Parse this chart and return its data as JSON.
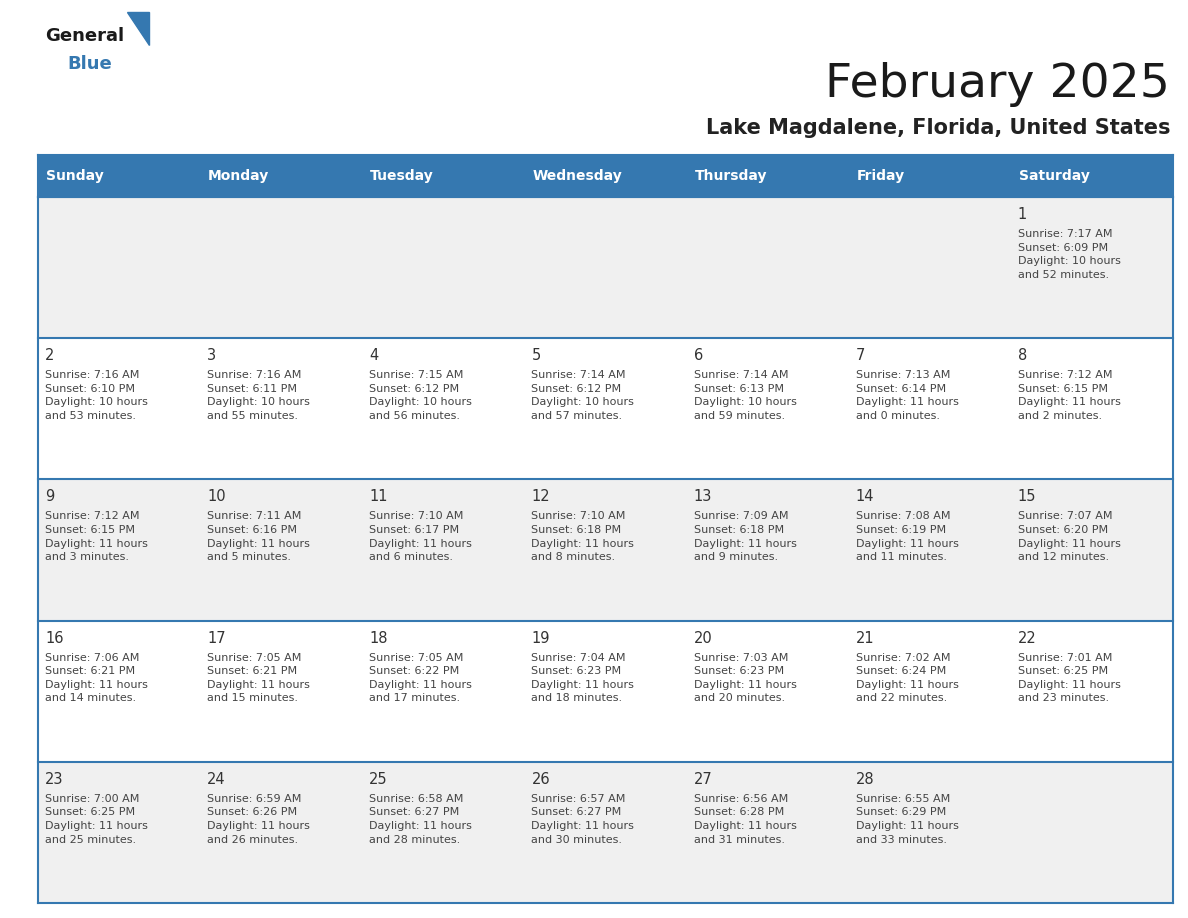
{
  "title": "February 2025",
  "subtitle": "Lake Magdalene, Florida, United States",
  "header_bg_color": "#3578b0",
  "header_text_color": "#ffffff",
  "day_names": [
    "Sunday",
    "Monday",
    "Tuesday",
    "Wednesday",
    "Thursday",
    "Friday",
    "Saturday"
  ],
  "row_alt_colors": [
    "#f0f0f0",
    "#ffffff"
  ],
  "cell_border_color": "#3578b0",
  "day_num_color": "#333333",
  "info_text_color": "#444444",
  "calendar_data": [
    [
      null,
      null,
      null,
      null,
      null,
      null,
      {
        "day": "1",
        "sunrise": "7:17 AM",
        "sunset": "6:09 PM",
        "daylight_h": "10 hours",
        "daylight_m": "and 52 minutes."
      }
    ],
    [
      {
        "day": "2",
        "sunrise": "7:16 AM",
        "sunset": "6:10 PM",
        "daylight_h": "10 hours",
        "daylight_m": "and 53 minutes."
      },
      {
        "day": "3",
        "sunrise": "7:16 AM",
        "sunset": "6:11 PM",
        "daylight_h": "10 hours",
        "daylight_m": "and 55 minutes."
      },
      {
        "day": "4",
        "sunrise": "7:15 AM",
        "sunset": "6:12 PM",
        "daylight_h": "10 hours",
        "daylight_m": "and 56 minutes."
      },
      {
        "day": "5",
        "sunrise": "7:14 AM",
        "sunset": "6:12 PM",
        "daylight_h": "10 hours",
        "daylight_m": "and 57 minutes."
      },
      {
        "day": "6",
        "sunrise": "7:14 AM",
        "sunset": "6:13 PM",
        "daylight_h": "10 hours",
        "daylight_m": "and 59 minutes."
      },
      {
        "day": "7",
        "sunrise": "7:13 AM",
        "sunset": "6:14 PM",
        "daylight_h": "11 hours",
        "daylight_m": "and 0 minutes."
      },
      {
        "day": "8",
        "sunrise": "7:12 AM",
        "sunset": "6:15 PM",
        "daylight_h": "11 hours",
        "daylight_m": "and 2 minutes."
      }
    ],
    [
      {
        "day": "9",
        "sunrise": "7:12 AM",
        "sunset": "6:15 PM",
        "daylight_h": "11 hours",
        "daylight_m": "and 3 minutes."
      },
      {
        "day": "10",
        "sunrise": "7:11 AM",
        "sunset": "6:16 PM",
        "daylight_h": "11 hours",
        "daylight_m": "and 5 minutes."
      },
      {
        "day": "11",
        "sunrise": "7:10 AM",
        "sunset": "6:17 PM",
        "daylight_h": "11 hours",
        "daylight_m": "and 6 minutes."
      },
      {
        "day": "12",
        "sunrise": "7:10 AM",
        "sunset": "6:18 PM",
        "daylight_h": "11 hours",
        "daylight_m": "and 8 minutes."
      },
      {
        "day": "13",
        "sunrise": "7:09 AM",
        "sunset": "6:18 PM",
        "daylight_h": "11 hours",
        "daylight_m": "and 9 minutes."
      },
      {
        "day": "14",
        "sunrise": "7:08 AM",
        "sunset": "6:19 PM",
        "daylight_h": "11 hours",
        "daylight_m": "and 11 minutes."
      },
      {
        "day": "15",
        "sunrise": "7:07 AM",
        "sunset": "6:20 PM",
        "daylight_h": "11 hours",
        "daylight_m": "and 12 minutes."
      }
    ],
    [
      {
        "day": "16",
        "sunrise": "7:06 AM",
        "sunset": "6:21 PM",
        "daylight_h": "11 hours",
        "daylight_m": "and 14 minutes."
      },
      {
        "day": "17",
        "sunrise": "7:05 AM",
        "sunset": "6:21 PM",
        "daylight_h": "11 hours",
        "daylight_m": "and 15 minutes."
      },
      {
        "day": "18",
        "sunrise": "7:05 AM",
        "sunset": "6:22 PM",
        "daylight_h": "11 hours",
        "daylight_m": "and 17 minutes."
      },
      {
        "day": "19",
        "sunrise": "7:04 AM",
        "sunset": "6:23 PM",
        "daylight_h": "11 hours",
        "daylight_m": "and 18 minutes."
      },
      {
        "day": "20",
        "sunrise": "7:03 AM",
        "sunset": "6:23 PM",
        "daylight_h": "11 hours",
        "daylight_m": "and 20 minutes."
      },
      {
        "day": "21",
        "sunrise": "7:02 AM",
        "sunset": "6:24 PM",
        "daylight_h": "11 hours",
        "daylight_m": "and 22 minutes."
      },
      {
        "day": "22",
        "sunrise": "7:01 AM",
        "sunset": "6:25 PM",
        "daylight_h": "11 hours",
        "daylight_m": "and 23 minutes."
      }
    ],
    [
      {
        "day": "23",
        "sunrise": "7:00 AM",
        "sunset": "6:25 PM",
        "daylight_h": "11 hours",
        "daylight_m": "and 25 minutes."
      },
      {
        "day": "24",
        "sunrise": "6:59 AM",
        "sunset": "6:26 PM",
        "daylight_h": "11 hours",
        "daylight_m": "and 26 minutes."
      },
      {
        "day": "25",
        "sunrise": "6:58 AM",
        "sunset": "6:27 PM",
        "daylight_h": "11 hours",
        "daylight_m": "and 28 minutes."
      },
      {
        "day": "26",
        "sunrise": "6:57 AM",
        "sunset": "6:27 PM",
        "daylight_h": "11 hours",
        "daylight_m": "and 30 minutes."
      },
      {
        "day": "27",
        "sunrise": "6:56 AM",
        "sunset": "6:28 PM",
        "daylight_h": "11 hours",
        "daylight_m": "and 31 minutes."
      },
      {
        "day": "28",
        "sunrise": "6:55 AM",
        "sunset": "6:29 PM",
        "daylight_h": "11 hours",
        "daylight_m": "and 33 minutes."
      },
      null
    ]
  ]
}
